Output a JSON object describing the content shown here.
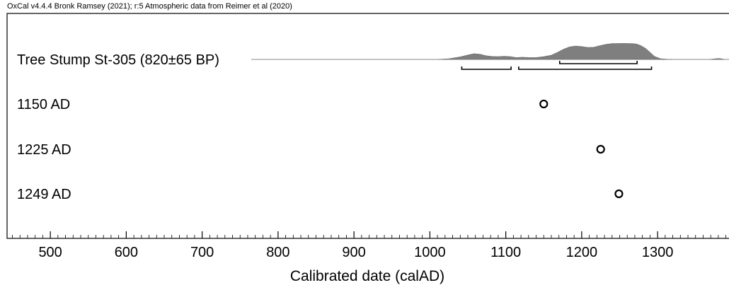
{
  "header": "OxCal v4.4.4 Bronk Ramsey (2021); r:5 Atmospheric data from Reimer et al (2020)",
  "chart_data": {
    "type": "scatter",
    "xlabel": "Calibrated date (calAD)",
    "xlim": [
      443,
      1395
    ],
    "ticks": [
      500,
      600,
      700,
      800,
      900,
      1000,
      1100,
      1200,
      1300
    ],
    "tick_labels": [
      "500",
      "600",
      "700",
      "800",
      "900",
      "1000",
      "1100",
      "1200",
      "1300"
    ],
    "minor_tick_step": 10,
    "distribution": {
      "label": "Tree Stump St-305 (820±65 BP)",
      "density": [
        [
          1010,
          0
        ],
        [
          1025,
          0.04
        ],
        [
          1040,
          0.14
        ],
        [
          1050,
          0.24
        ],
        [
          1058,
          0.31
        ],
        [
          1066,
          0.28
        ],
        [
          1074,
          0.2
        ],
        [
          1082,
          0.16
        ],
        [
          1090,
          0.15
        ],
        [
          1098,
          0.17
        ],
        [
          1106,
          0.15
        ],
        [
          1114,
          0.1
        ],
        [
          1122,
          0.12
        ],
        [
          1132,
          0.1
        ],
        [
          1140,
          0.1
        ],
        [
          1150,
          0.15
        ],
        [
          1160,
          0.23
        ],
        [
          1168,
          0.38
        ],
        [
          1176,
          0.55
        ],
        [
          1184,
          0.68
        ],
        [
          1192,
          0.73
        ],
        [
          1200,
          0.7
        ],
        [
          1208,
          0.65
        ],
        [
          1216,
          0.66
        ],
        [
          1224,
          0.75
        ],
        [
          1232,
          0.82
        ],
        [
          1240,
          0.86
        ],
        [
          1250,
          0.87
        ],
        [
          1258,
          0.87
        ],
        [
          1266,
          0.86
        ],
        [
          1272,
          0.84
        ],
        [
          1278,
          0.75
        ],
        [
          1284,
          0.6
        ],
        [
          1290,
          0.38
        ],
        [
          1296,
          0.16
        ],
        [
          1304,
          0.04
        ],
        [
          1312,
          0.01
        ],
        [
          1320,
          0
        ]
      ],
      "tail": [
        [
          1368,
          0
        ],
        [
          1376,
          0.04
        ],
        [
          1382,
          0.05
        ],
        [
          1388,
          0
        ]
      ],
      "ranges_95": [
        [
          1042,
          1107
        ],
        [
          1117,
          1292
        ]
      ],
      "ranges_68": [
        [
          1171,
          1273
        ]
      ]
    },
    "points": [
      {
        "label": "1150 AD",
        "x": 1150
      },
      {
        "label": "1225 AD",
        "x": 1225
      },
      {
        "label": "1249 AD",
        "x": 1249
      }
    ]
  }
}
